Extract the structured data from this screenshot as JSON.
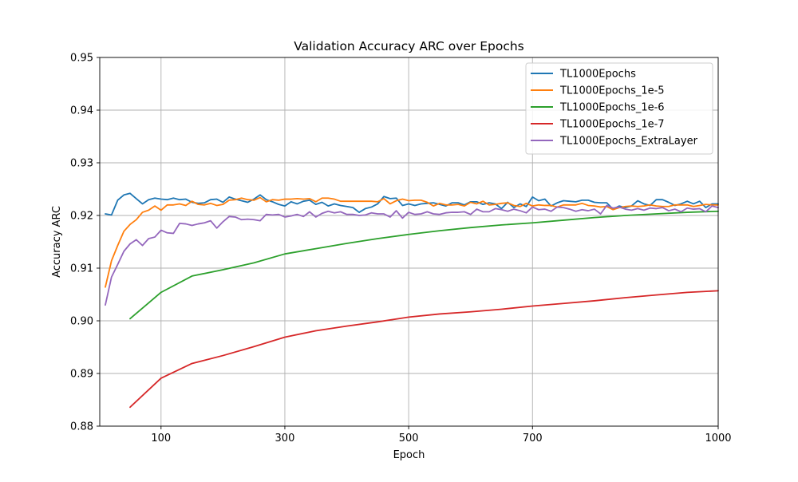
{
  "chart_data": {
    "type": "line",
    "title": "Validation Accuracy ARC over Epochs",
    "xlabel": "Epoch",
    "ylabel": "Accuracy ARC",
    "xlim": [
      1,
      1000
    ],
    "ylim": [
      0.88,
      0.95
    ],
    "x_ticks": [
      {
        "value": 100,
        "label": "100"
      },
      {
        "value": 300,
        "label": "300"
      },
      {
        "value": 500,
        "label": "500"
      },
      {
        "value": 700,
        "label": "700"
      },
      {
        "value": 1000,
        "label": "1000"
      }
    ],
    "y_ticks": [
      {
        "value": 0.88,
        "label": "0.88"
      },
      {
        "value": 0.89,
        "label": "0.89"
      },
      {
        "value": 0.9,
        "label": "0.90"
      },
      {
        "value": 0.91,
        "label": "0.91"
      },
      {
        "value": 0.92,
        "label": "0.92"
      },
      {
        "value": 0.93,
        "label": "0.93"
      },
      {
        "value": 0.94,
        "label": "0.94"
      },
      {
        "value": 0.95,
        "label": "0.95"
      }
    ],
    "grid": true,
    "legend_position": "top-right",
    "series": [
      {
        "name": "TL1000Epochs",
        "color": "#1f77b4",
        "x": [
          10,
          20,
          30,
          40,
          50,
          60,
          70,
          80,
          90,
          100,
          110,
          120,
          130,
          140,
          150,
          160,
          170,
          180,
          190,
          200,
          210,
          220,
          230,
          240,
          250,
          260,
          270,
          280,
          290,
          300,
          310,
          320,
          330,
          340,
          350,
          360,
          370,
          380,
          390,
          400,
          410,
          420,
          430,
          440,
          450,
          460,
          470,
          480,
          490,
          500,
          510,
          520,
          530,
          540,
          550,
          560,
          570,
          580,
          590,
          600,
          610,
          620,
          630,
          640,
          650,
          660,
          670,
          680,
          690,
          700,
          710,
          720,
          730,
          740,
          750,
          760,
          770,
          780,
          790,
          800,
          810,
          820,
          830,
          840,
          850,
          860,
          870,
          880,
          890,
          900,
          910,
          920,
          930,
          940,
          950,
          960,
          970,
          980,
          990,
          1000
        ],
        "y": [
          0.9203,
          0.9201,
          0.9229,
          0.9239,
          0.9242,
          0.9232,
          0.9222,
          0.923,
          0.9233,
          0.9231,
          0.923,
          0.9233,
          0.923,
          0.9231,
          0.9225,
          0.9223,
          0.9224,
          0.923,
          0.9231,
          0.9225,
          0.9235,
          0.9231,
          0.9228,
          0.9225,
          0.9231,
          0.9239,
          0.923,
          0.9226,
          0.9221,
          0.9218,
          0.9226,
          0.9222,
          0.9227,
          0.9229,
          0.9221,
          0.9225,
          0.9218,
          0.9222,
          0.9219,
          0.9217,
          0.9215,
          0.9206,
          0.9213,
          0.9216,
          0.9222,
          0.9236,
          0.9232,
          0.9233,
          0.9219,
          0.9222,
          0.9219,
          0.9222,
          0.9223,
          0.9224,
          0.9221,
          0.9218,
          0.9224,
          0.9224,
          0.922,
          0.9226,
          0.9226,
          0.9221,
          0.9224,
          0.9222,
          0.9213,
          0.9225,
          0.9215,
          0.9222,
          0.9217,
          0.9235,
          0.9228,
          0.9231,
          0.9218,
          0.9224,
          0.9228,
          0.9227,
          0.9226,
          0.9229,
          0.9229,
          0.9225,
          0.9224,
          0.9224,
          0.9212,
          0.9218,
          0.9215,
          0.9218,
          0.9228,
          0.9222,
          0.9219,
          0.923,
          0.923,
          0.9225,
          0.9219,
          0.9222,
          0.9227,
          0.9222,
          0.9227,
          0.9215,
          0.9222,
          0.9222
        ]
      },
      {
        "name": "TL1000Epochs_1e-5",
        "color": "#ff7f0e",
        "x": [
          10,
          20,
          30,
          40,
          50,
          60,
          70,
          80,
          90,
          100,
          110,
          120,
          130,
          140,
          150,
          160,
          170,
          180,
          190,
          200,
          210,
          220,
          230,
          240,
          250,
          260,
          270,
          280,
          290,
          300,
          310,
          320,
          330,
          340,
          350,
          360,
          370,
          380,
          390,
          400,
          410,
          420,
          430,
          440,
          450,
          460,
          470,
          480,
          490,
          500,
          510,
          520,
          530,
          540,
          550,
          560,
          570,
          580,
          590,
          600,
          610,
          620,
          630,
          640,
          650,
          660,
          670,
          680,
          690,
          700,
          710,
          720,
          730,
          740,
          750,
          760,
          770,
          780,
          790,
          800,
          810,
          820,
          830,
          840,
          850,
          860,
          870,
          880,
          890,
          900,
          910,
          920,
          930,
          940,
          950,
          960,
          970,
          980,
          990,
          1000
        ],
        "y": [
          0.9064,
          0.9114,
          0.9143,
          0.917,
          0.9183,
          0.9192,
          0.9206,
          0.921,
          0.9218,
          0.921,
          0.922,
          0.922,
          0.9222,
          0.9219,
          0.9227,
          0.9221,
          0.922,
          0.9223,
          0.9219,
          0.9221,
          0.9229,
          0.923,
          0.9233,
          0.923,
          0.9229,
          0.9234,
          0.9226,
          0.923,
          0.9229,
          0.9231,
          0.9231,
          0.9232,
          0.9231,
          0.9232,
          0.9226,
          0.9233,
          0.9233,
          0.9231,
          0.9227,
          0.9227,
          0.9227,
          0.9227,
          0.9227,
          0.9227,
          0.9226,
          0.9232,
          0.9222,
          0.9228,
          0.9231,
          0.9228,
          0.9229,
          0.9229,
          0.9225,
          0.9218,
          0.9223,
          0.922,
          0.922,
          0.9221,
          0.9218,
          0.9225,
          0.9222,
          0.9227,
          0.922,
          0.9221,
          0.9223,
          0.9224,
          0.9219,
          0.9217,
          0.9223,
          0.9218,
          0.922,
          0.9219,
          0.9219,
          0.9216,
          0.922,
          0.922,
          0.922,
          0.9223,
          0.9219,
          0.9218,
          0.9216,
          0.9217,
          0.9211,
          0.9215,
          0.9217,
          0.9218,
          0.9217,
          0.9218,
          0.922,
          0.9218,
          0.9217,
          0.9217,
          0.922,
          0.922,
          0.922,
          0.9217,
          0.9219,
          0.9221,
          0.922,
          0.922
        ]
      },
      {
        "name": "TL1000Epochs_1e-6",
        "color": "#2ca02c",
        "x": [
          50,
          100,
          150,
          200,
          250,
          300,
          350,
          400,
          450,
          500,
          550,
          600,
          650,
          700,
          750,
          800,
          850,
          900,
          950,
          1000
        ],
        "y": [
          0.9004,
          0.9054,
          0.9085,
          0.9097,
          0.911,
          0.9127,
          0.9137,
          0.9147,
          0.9156,
          0.9164,
          0.9171,
          0.9177,
          0.9182,
          0.9186,
          0.9191,
          0.9196,
          0.92,
          0.9203,
          0.9206,
          0.9208
        ]
      },
      {
        "name": "TL1000Epochs_1e-7",
        "color": "#d62728",
        "x": [
          50,
          100,
          150,
          200,
          250,
          300,
          350,
          400,
          450,
          500,
          550,
          600,
          650,
          700,
          750,
          800,
          850,
          900,
          950,
          1000
        ],
        "y": [
          0.8836,
          0.8891,
          0.8919,
          0.8934,
          0.8951,
          0.8969,
          0.8981,
          0.899,
          0.8998,
          0.9007,
          0.9013,
          0.9017,
          0.9022,
          0.9028,
          0.9033,
          0.9038,
          0.9044,
          0.9049,
          0.9054,
          0.9057
        ]
      },
      {
        "name": "TL1000Epochs_ExtraLayer",
        "color": "#9467bd",
        "x": [
          10,
          20,
          30,
          40,
          50,
          60,
          70,
          80,
          90,
          100,
          110,
          120,
          130,
          140,
          150,
          160,
          170,
          180,
          190,
          200,
          210,
          220,
          230,
          240,
          250,
          260,
          270,
          280,
          290,
          300,
          310,
          320,
          330,
          340,
          350,
          360,
          370,
          380,
          390,
          400,
          410,
          420,
          430,
          440,
          450,
          460,
          470,
          480,
          490,
          500,
          510,
          520,
          530,
          540,
          550,
          560,
          570,
          580,
          590,
          600,
          610,
          620,
          630,
          640,
          650,
          660,
          670,
          680,
          690,
          700,
          710,
          720,
          730,
          740,
          750,
          760,
          770,
          780,
          790,
          800,
          810,
          820,
          830,
          840,
          850,
          860,
          870,
          880,
          890,
          900,
          910,
          920,
          930,
          940,
          950,
          960,
          970,
          980,
          990,
          1000
        ],
        "y": [
          0.903,
          0.9083,
          0.9107,
          0.9132,
          0.9146,
          0.9154,
          0.9143,
          0.9156,
          0.9159,
          0.9172,
          0.9167,
          0.9166,
          0.9185,
          0.9184,
          0.9181,
          0.9184,
          0.9186,
          0.919,
          0.9176,
          0.9188,
          0.9198,
          0.9197,
          0.9192,
          0.9193,
          0.9192,
          0.919,
          0.9202,
          0.9201,
          0.9202,
          0.9197,
          0.9199,
          0.9202,
          0.9198,
          0.9207,
          0.9197,
          0.9204,
          0.9208,
          0.9205,
          0.9207,
          0.9202,
          0.9202,
          0.92,
          0.9201,
          0.9205,
          0.9203,
          0.9203,
          0.9197,
          0.9209,
          0.9195,
          0.9206,
          0.9202,
          0.9203,
          0.9207,
          0.9203,
          0.9202,
          0.9205,
          0.9206,
          0.9206,
          0.9207,
          0.9202,
          0.9212,
          0.9207,
          0.9207,
          0.9213,
          0.9211,
          0.9208,
          0.9212,
          0.9209,
          0.9205,
          0.9216,
          0.9211,
          0.9212,
          0.9208,
          0.9216,
          0.9215,
          0.9212,
          0.9208,
          0.9211,
          0.9209,
          0.9212,
          0.9203,
          0.9219,
          0.9214,
          0.9216,
          0.9212,
          0.921,
          0.9213,
          0.921,
          0.9214,
          0.9213,
          0.9215,
          0.9209,
          0.9212,
          0.9207,
          0.9214,
          0.9212,
          0.9213,
          0.9207,
          0.9218,
          0.9215
        ]
      }
    ]
  }
}
